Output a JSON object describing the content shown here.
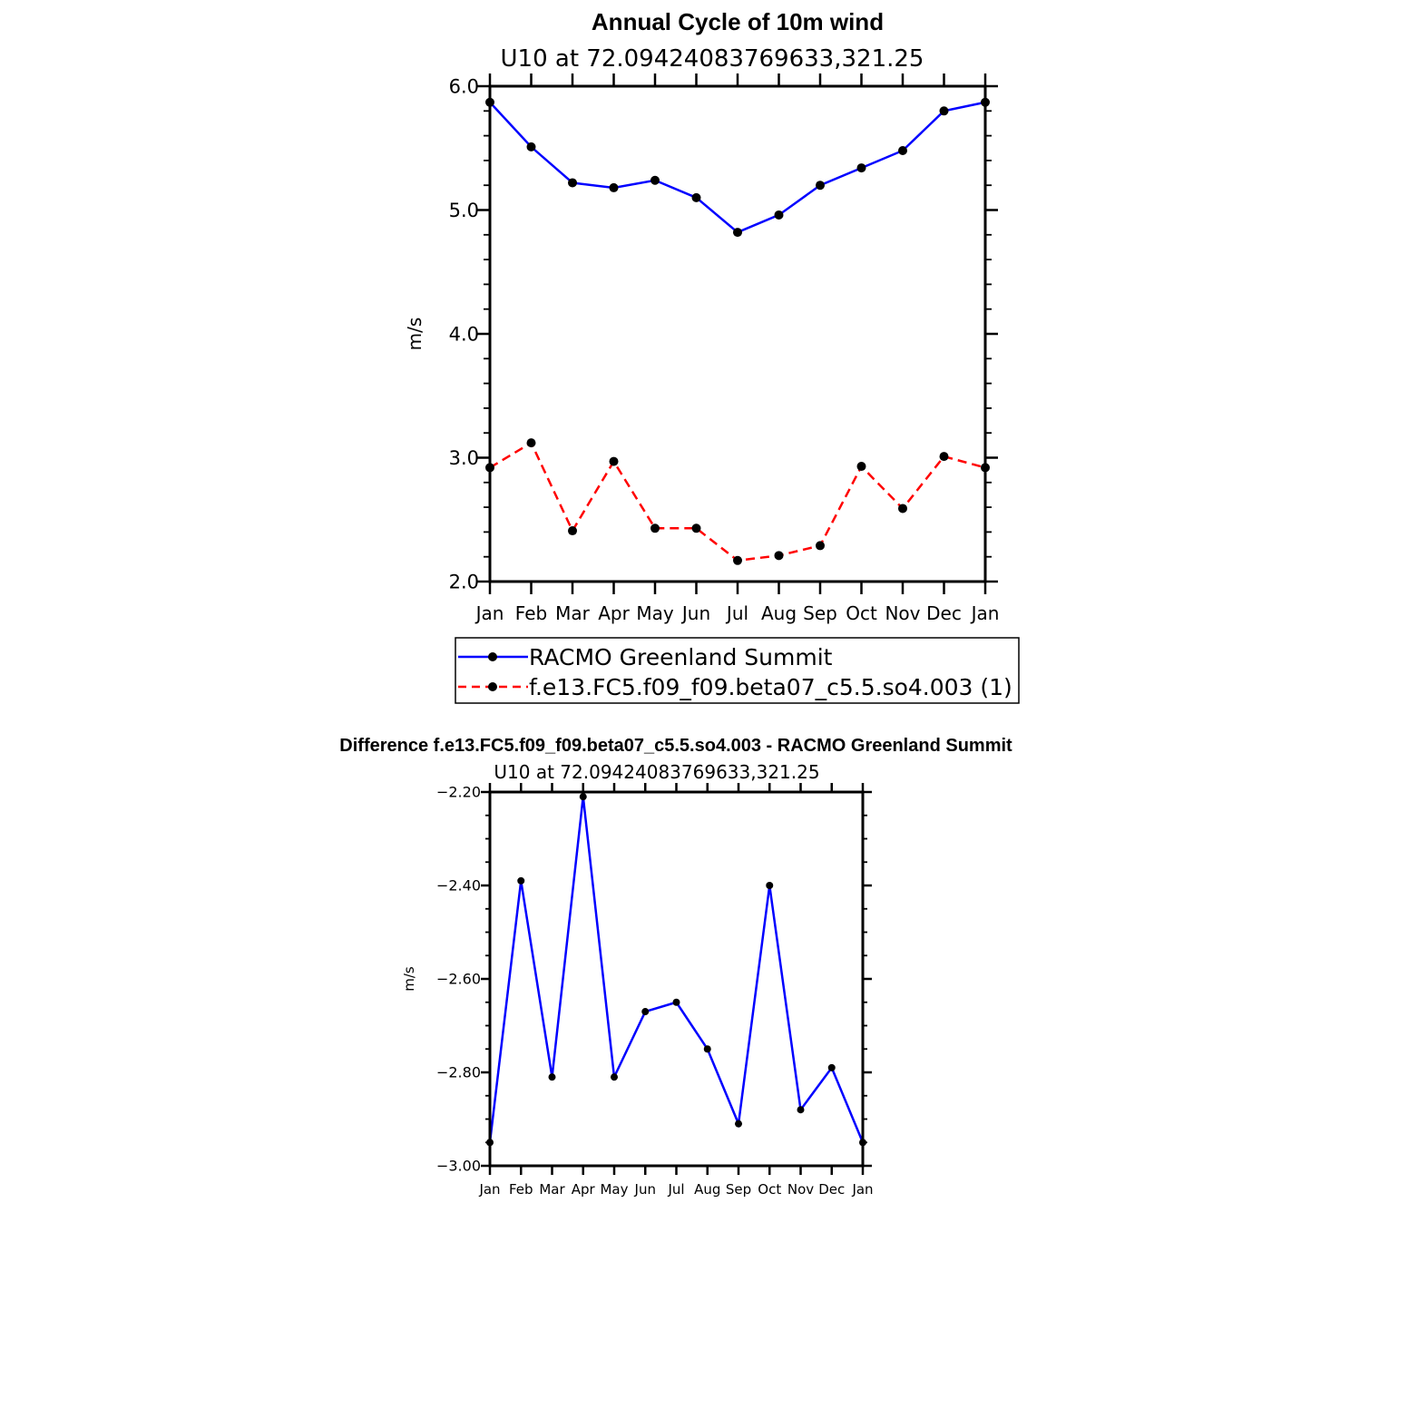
{
  "chart_data": [
    {
      "type": "line",
      "title": "Annual Cycle of 10m wind",
      "subtitle": "U10 at 72.09424083769633,321.25",
      "ylabel": "m/s",
      "xlabel": "",
      "ylim": [
        2.0,
        6.0
      ],
      "yticks": [
        "2.0",
        "3.0",
        "4.0",
        "5.0",
        "6.0"
      ],
      "categories": [
        "Jan",
        "Feb",
        "Mar",
        "Apr",
        "May",
        "Jun",
        "Jul",
        "Aug",
        "Sep",
        "Oct",
        "Nov",
        "Dec",
        "Jan"
      ],
      "legend_position": "bottom",
      "series": [
        {
          "name": "RACMO Greenland Summit",
          "color": "#0000ff",
          "dash": "solid",
          "values": [
            5.87,
            5.51,
            5.22,
            5.18,
            5.24,
            5.1,
            4.82,
            4.96,
            5.2,
            5.34,
            5.48,
            5.8,
            5.87
          ]
        },
        {
          "name": "f.e13.FC5.f09_f09.beta07_c5.5.so4.003 (1)",
          "color": "#ff0000",
          "dash": "dashed",
          "values": [
            2.92,
            3.12,
            2.41,
            2.97,
            2.43,
            2.43,
            2.17,
            2.21,
            2.29,
            2.93,
            2.59,
            3.01,
            2.92
          ]
        }
      ]
    },
    {
      "type": "line",
      "title": "Difference f.e13.FC5.f09_f09.beta07_c5.5.so4.003 - RACMO Greenland Summit",
      "subtitle": "U10 at 72.09424083769633,321.25",
      "ylabel": "m/s",
      "xlabel": "",
      "ylim": [
        -3.0,
        -2.2
      ],
      "yticks": [
        "-3.00",
        "-2.80",
        "-2.60",
        "-2.40",
        "-2.20"
      ],
      "categories": [
        "Jan",
        "Feb",
        "Mar",
        "Apr",
        "May",
        "Jun",
        "Jul",
        "Aug",
        "Sep",
        "Oct",
        "Nov",
        "Dec",
        "Jan"
      ],
      "series": [
        {
          "color": "#0000ff",
          "dash": "solid",
          "values": [
            -2.95,
            -2.39,
            -2.81,
            -2.21,
            -2.81,
            -2.67,
            -2.65,
            -2.75,
            -2.91,
            -2.4,
            -2.88,
            -2.79,
            -2.95
          ]
        }
      ]
    }
  ]
}
